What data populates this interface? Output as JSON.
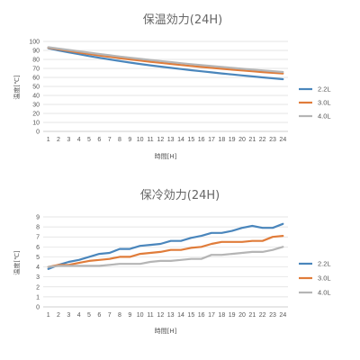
{
  "chart_data": [
    {
      "type": "line",
      "title": "保温効力(24H)",
      "xlabel": "時間[H]",
      "ylabel": "温度[℃]",
      "x": [
        1,
        2,
        3,
        4,
        5,
        6,
        7,
        8,
        9,
        10,
        11,
        12,
        13,
        14,
        15,
        16,
        17,
        18,
        19,
        20,
        21,
        22,
        23,
        24
      ],
      "ylim": [
        0,
        100
      ],
      "yticks": [
        0,
        10,
        20,
        30,
        40,
        50,
        60,
        70,
        80,
        90,
        100
      ],
      "grid": true,
      "legend_position": "right",
      "series": [
        {
          "name": "2.2L",
          "color": "#4a86bc",
          "values": [
            92.5,
            90.0,
            87.8,
            85.8,
            83.7,
            81.8,
            80.0,
            78.2,
            76.5,
            74.9,
            73.4,
            72.0,
            70.6,
            69.3,
            68.0,
            66.8,
            65.6,
            64.4,
            63.3,
            62.2,
            61.1,
            60.0,
            59.0,
            58.0
          ]
        },
        {
          "name": "3.0L",
          "color": "#e07c3a",
          "values": [
            93.0,
            91.2,
            89.4,
            87.6,
            86.0,
            84.4,
            82.9,
            81.4,
            80.0,
            78.7,
            77.4,
            76.2,
            75.0,
            73.8,
            72.7,
            71.6,
            70.6,
            69.6,
            68.6,
            67.7,
            66.8,
            65.9,
            65.1,
            64.3
          ]
        },
        {
          "name": "4.0L",
          "color": "#b5b5b5",
          "values": [
            93.5,
            92.0,
            90.5,
            89.0,
            87.5,
            86.0,
            84.6,
            83.2,
            81.9,
            80.6,
            79.4,
            78.2,
            77.0,
            75.8,
            74.7,
            73.6,
            72.6,
            71.6,
            70.6,
            69.6,
            68.7,
            67.8,
            66.9,
            66.0
          ]
        }
      ]
    },
    {
      "type": "line",
      "title": "保冷効力(24H)",
      "xlabel": "時間[H]",
      "ylabel": "温度[℃]",
      "x": [
        1,
        2,
        3,
        4,
        5,
        6,
        7,
        8,
        9,
        10,
        11,
        12,
        13,
        14,
        15,
        16,
        17,
        18,
        19,
        20,
        21,
        22,
        23,
        24
      ],
      "ylim": [
        0,
        9
      ],
      "yticks": [
        0,
        1,
        2,
        3,
        4,
        5,
        6,
        7,
        8,
        9
      ],
      "grid": true,
      "legend_position": "right",
      "series": [
        {
          "name": "2.2L",
          "color": "#4a86bc",
          "values": [
            3.8,
            4.2,
            4.5,
            4.7,
            5.0,
            5.3,
            5.4,
            5.8,
            5.8,
            6.1,
            6.2,
            6.3,
            6.6,
            6.6,
            6.9,
            7.1,
            7.4,
            7.4,
            7.6,
            7.9,
            8.1,
            7.9,
            7.9,
            8.3
          ]
        },
        {
          "name": "3.0L",
          "color": "#e07c3a",
          "values": [
            4.0,
            4.2,
            4.2,
            4.4,
            4.6,
            4.7,
            4.8,
            5.0,
            5.0,
            5.3,
            5.4,
            5.5,
            5.7,
            5.7,
            5.9,
            6.0,
            6.3,
            6.5,
            6.5,
            6.5,
            6.6,
            6.6,
            7.0,
            7.1
          ]
        },
        {
          "name": "4.0L",
          "color": "#b5b5b5",
          "values": [
            4.0,
            4.1,
            4.1,
            4.1,
            4.1,
            4.1,
            4.2,
            4.3,
            4.3,
            4.3,
            4.5,
            4.6,
            4.6,
            4.7,
            4.8,
            4.8,
            5.2,
            5.2,
            5.3,
            5.4,
            5.5,
            5.5,
            5.7,
            6.0
          ]
        }
      ]
    }
  ]
}
